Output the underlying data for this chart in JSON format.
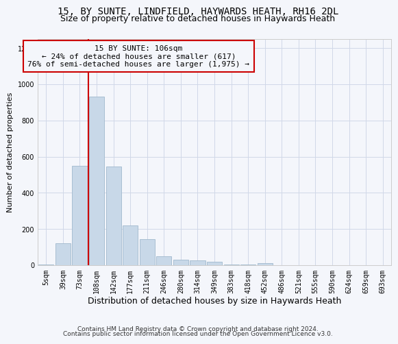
{
  "title1": "15, BY SUNTE, LINDFIELD, HAYWARDS HEATH, RH16 2DL",
  "title2": "Size of property relative to detached houses in Haywards Heath",
  "xlabel": "Distribution of detached houses by size in Haywards Heath",
  "ylabel": "Number of detached properties",
  "footer1": "Contains HM Land Registry data © Crown copyright and database right 2024.",
  "footer2": "Contains public sector information licensed under the Open Government Licence v3.0.",
  "bar_color": "#c8d8e8",
  "bar_edge_color": "#a0b8cc",
  "categories": [
    "5sqm",
    "39sqm",
    "73sqm",
    "108sqm",
    "142sqm",
    "177sqm",
    "211sqm",
    "246sqm",
    "280sqm",
    "314sqm",
    "349sqm",
    "383sqm",
    "418sqm",
    "452sqm",
    "486sqm",
    "521sqm",
    "555sqm",
    "590sqm",
    "624sqm",
    "659sqm",
    "693sqm"
  ],
  "values": [
    5,
    120,
    550,
    930,
    545,
    220,
    145,
    50,
    30,
    25,
    20,
    5,
    5,
    10,
    0,
    0,
    0,
    0,
    0,
    0,
    0
  ],
  "vline_color": "#cc0000",
  "annotation_text": "15 BY SUNTE: 106sqm\n← 24% of detached houses are smaller (617)\n76% of semi-detached houses are larger (1,975) →",
  "ylim": [
    0,
    1250
  ],
  "yticks": [
    0,
    200,
    400,
    600,
    800,
    1000,
    1200
  ],
  "grid_color": "#d0d8e8",
  "background_color": "#f4f6fb",
  "title1_fontsize": 10,
  "title2_fontsize": 9,
  "xlabel_fontsize": 9,
  "ylabel_fontsize": 8,
  "tick_fontsize": 7,
  "annotation_fontsize": 8,
  "footer_fontsize": 6.5
}
